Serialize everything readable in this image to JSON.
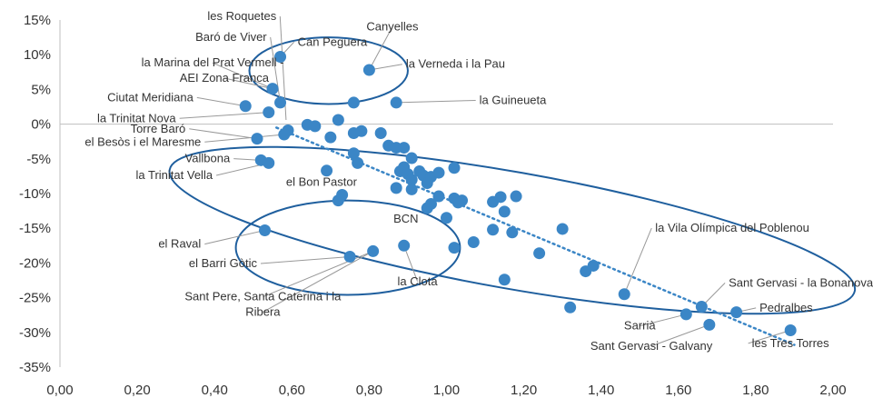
{
  "chart_data": {
    "type": "scatter",
    "title": "",
    "xlabel": "",
    "ylabel": "",
    "xlim": [
      0,
      2.0
    ],
    "ylim": [
      -0.35,
      0.15
    ],
    "grid": false,
    "x_ticks": [
      {
        "value": 0.0,
        "label": "0,00"
      },
      {
        "value": 0.2,
        "label": "0,20"
      },
      {
        "value": 0.4,
        "label": "0,40"
      },
      {
        "value": 0.6,
        "label": "0,60"
      },
      {
        "value": 0.8,
        "label": "0,80"
      },
      {
        "value": 1.0,
        "label": "1,00"
      },
      {
        "value": 1.2,
        "label": "1,20"
      },
      {
        "value": 1.4,
        "label": "1,40"
      },
      {
        "value": 1.6,
        "label": "1,60"
      },
      {
        "value": 1.8,
        "label": "1,80"
      },
      {
        "value": 2.0,
        "label": "2,00"
      }
    ],
    "y_ticks": [
      {
        "value": 0.15,
        "label": "15%"
      },
      {
        "value": 0.1,
        "label": "10%"
      },
      {
        "value": 0.05,
        "label": "5%"
      },
      {
        "value": 0.0,
        "label": "0%"
      },
      {
        "value": -0.05,
        "label": "-5%"
      },
      {
        "value": -0.1,
        "label": "-10%"
      },
      {
        "value": -0.15,
        "label": "-15%"
      },
      {
        "value": -0.2,
        "label": "-20%"
      },
      {
        "value": -0.25,
        "label": "-25%"
      },
      {
        "value": -0.3,
        "label": "-30%"
      },
      {
        "value": -0.35,
        "label": "-35%"
      }
    ],
    "colors": {
      "marker": "#3b86c6",
      "ellipse": "#1f5f9e",
      "trend": "#3b86c6",
      "axis": "#bfbfbf",
      "leader": "#999999"
    },
    "points": [
      {
        "x": 0.57,
        "y": 0.097
      },
      {
        "x": 0.8,
        "y": 0.078
      },
      {
        "x": 0.55,
        "y": 0.051
      },
      {
        "x": 0.57,
        "y": 0.031
      },
      {
        "x": 0.76,
        "y": 0.031
      },
      {
        "x": 0.87,
        "y": 0.031
      },
      {
        "x": 0.48,
        "y": 0.026
      },
      {
        "x": 0.54,
        "y": 0.017
      },
      {
        "x": 0.72,
        "y": 0.006
      },
      {
        "x": 0.64,
        "y": -0.001
      },
      {
        "x": 0.66,
        "y": -0.003
      },
      {
        "x": 0.59,
        "y": -0.009
      },
      {
        "x": 0.58,
        "y": -0.015
      },
      {
        "x": 0.51,
        "y": -0.021
      },
      {
        "x": 0.76,
        "y": -0.013
      },
      {
        "x": 0.78,
        "y": -0.01
      },
      {
        "x": 0.83,
        "y": -0.013
      },
      {
        "x": 0.7,
        "y": -0.019
      },
      {
        "x": 0.85,
        "y": -0.031
      },
      {
        "x": 0.87,
        "y": -0.034
      },
      {
        "x": 0.89,
        "y": -0.034
      },
      {
        "x": 0.76,
        "y": -0.042
      },
      {
        "x": 0.77,
        "y": -0.056
      },
      {
        "x": 0.52,
        "y": -0.052
      },
      {
        "x": 0.54,
        "y": -0.056
      },
      {
        "x": 0.91,
        "y": -0.049
      },
      {
        "x": 0.89,
        "y": -0.062
      },
      {
        "x": 0.93,
        "y": -0.068
      },
      {
        "x": 0.88,
        "y": -0.068
      },
      {
        "x": 0.9,
        "y": -0.072
      },
      {
        "x": 0.94,
        "y": -0.074
      },
      {
        "x": 0.96,
        "y": -0.076
      },
      {
        "x": 0.98,
        "y": -0.07
      },
      {
        "x": 1.02,
        "y": -0.063
      },
      {
        "x": 0.69,
        "y": -0.067
      },
      {
        "x": 0.91,
        "y": -0.08
      },
      {
        "x": 0.95,
        "y": -0.085
      },
      {
        "x": 0.87,
        "y": -0.092
      },
      {
        "x": 0.91,
        "y": -0.094
      },
      {
        "x": 0.98,
        "y": -0.104
      },
      {
        "x": 1.02,
        "y": -0.107
      },
      {
        "x": 1.04,
        "y": -0.11
      },
      {
        "x": 1.03,
        "y": -0.113
      },
      {
        "x": 0.96,
        "y": -0.115
      },
      {
        "x": 0.95,
        "y": -0.121
      },
      {
        "x": 0.73,
        "y": -0.102
      },
      {
        "x": 0.72,
        "y": -0.11
      },
      {
        "x": 1.0,
        "y": -0.135
      },
      {
        "x": 1.12,
        "y": -0.112
      },
      {
        "x": 1.14,
        "y": -0.105
      },
      {
        "x": 1.18,
        "y": -0.104
      },
      {
        "x": 1.15,
        "y": -0.126
      },
      {
        "x": 1.12,
        "y": -0.152
      },
      {
        "x": 1.17,
        "y": -0.156
      },
      {
        "x": 1.3,
        "y": -0.151
      },
      {
        "x": 1.07,
        "y": -0.17
      },
      {
        "x": 1.02,
        "y": -0.178
      },
      {
        "x": 1.24,
        "y": -0.186
      },
      {
        "x": 1.38,
        "y": -0.204
      },
      {
        "x": 1.36,
        "y": -0.212
      },
      {
        "x": 1.15,
        "y": -0.224
      },
      {
        "x": 1.46,
        "y": -0.245
      },
      {
        "x": 1.32,
        "y": -0.264
      },
      {
        "x": 0.53,
        "y": -0.153
      },
      {
        "x": 0.75,
        "y": -0.191
      },
      {
        "x": 0.81,
        "y": -0.183
      },
      {
        "x": 0.89,
        "y": -0.175
      },
      {
        "x": 1.66,
        "y": -0.263
      },
      {
        "x": 1.75,
        "y": -0.271
      },
      {
        "x": 1.62,
        "y": -0.274
      },
      {
        "x": 1.68,
        "y": -0.289
      },
      {
        "x": 1.89,
        "y": -0.297
      }
    ],
    "trendline": {
      "style": "dotted",
      "from": {
        "x": 0.56,
        "y": -0.005
      },
      "to": {
        "x": 1.9,
        "y": -0.318
      }
    },
    "ellipses": [
      {
        "cx": 0.695,
        "cy": 0.077,
        "rx": 0.205,
        "ry": 0.048,
        "angle_deg": 0
      },
      {
        "cx": 1.17,
        "cy": -0.153,
        "rx": 0.9,
        "ry": 0.084,
        "angle_deg": -10
      },
      {
        "cx": 0.745,
        "cy": -0.178,
        "rx": 0.29,
        "ry": 0.068,
        "angle_deg": 0
      }
    ],
    "labels": [
      {
        "text": "les Roquetes",
        "lx": 0.56,
        "ly": 0.15,
        "px": 0.585,
        "py": 0.006,
        "anchor": "end"
      },
      {
        "text": "Canyelles",
        "lx": 0.86,
        "ly": 0.135,
        "px": 0.8,
        "py": 0.078,
        "anchor": "middle"
      },
      {
        "text": "Baró de Viver",
        "lx": 0.535,
        "ly": 0.12,
        "px": 0.57,
        "py": 0.031,
        "anchor": "end"
      },
      {
        "text": "Can Peguera",
        "lx": 0.615,
        "ly": 0.113,
        "px": 0.57,
        "py": 0.097,
        "anchor": "start"
      },
      {
        "text": "la Verneda i la Pau",
        "lx": 0.895,
        "ly": 0.081,
        "px": 0.8,
        "py": 0.078,
        "anchor": "start"
      },
      {
        "text": "la Marina del Prat Vermell -",
        "lx": 0.395,
        "ly": 0.083,
        "px": 0.55,
        "py": 0.051,
        "anchor": "middle"
      },
      {
        "text": "AEI  Zona Franca",
        "lx": 0.425,
        "ly": 0.061,
        "px": 0.55,
        "py": 0.051,
        "anchor": "middle"
      },
      {
        "text": "la Guineueta",
        "lx": 1.085,
        "ly": 0.029,
        "px": 0.87,
        "py": 0.031,
        "anchor": "start"
      },
      {
        "text": "Ciutat Meridiana",
        "lx": 0.345,
        "ly": 0.033,
        "px": 0.48,
        "py": 0.026,
        "anchor": "end"
      },
      {
        "text": "la Trinitat Nova",
        "lx": 0.3,
        "ly": 0.003,
        "px": 0.54,
        "py": 0.017,
        "anchor": "end"
      },
      {
        "text": "Torre Baró",
        "lx": 0.325,
        "ly": -0.012,
        "px": 0.51,
        "py": -0.021,
        "anchor": "end"
      },
      {
        "text": "el Besòs i el Maresme",
        "lx": 0.365,
        "ly": -0.031,
        "px": 0.58,
        "py": -0.015,
        "anchor": "end"
      },
      {
        "text": "Vallbona",
        "lx": 0.44,
        "ly": -0.055,
        "px": 0.52,
        "py": -0.052,
        "anchor": "end"
      },
      {
        "text": "la Trinitat Vella",
        "lx": 0.395,
        "ly": -0.079,
        "px": 0.54,
        "py": -0.056,
        "anchor": "end"
      },
      {
        "text": "el Bon Pastor",
        "lx": 0.585,
        "ly": -0.089,
        "px": null,
        "py": null,
        "anchor": "start"
      },
      {
        "text": "BCN",
        "lx": 0.895,
        "ly": -0.142,
        "px": null,
        "py": null,
        "anchor": "middle"
      },
      {
        "text": "la Vila Olímpica del Poblenou",
        "lx": 1.54,
        "ly": -0.155,
        "px": 1.46,
        "py": -0.245,
        "anchor": "start"
      },
      {
        "text": "el Raval",
        "lx": 0.365,
        "ly": -0.178,
        "px": 0.53,
        "py": -0.153,
        "anchor": "end"
      },
      {
        "text": "el Barri Gòtic",
        "lx": 0.51,
        "ly": -0.206,
        "px": 0.75,
        "py": -0.191,
        "anchor": "end"
      },
      {
        "text": "la Clota",
        "lx": 0.925,
        "ly": -0.232,
        "px": 0.89,
        "py": -0.175,
        "anchor": "middle"
      },
      {
        "text": "Sant Pere, Santa Caterina i la",
        "lx": 0.525,
        "ly": -0.254,
        "px": 0.81,
        "py": -0.183,
        "anchor": "middle"
      },
      {
        "text": "Ribera",
        "lx": 0.525,
        "ly": -0.276,
        "px": 0.81,
        "py": -0.183,
        "anchor": "middle"
      },
      {
        "text": "Sant Gervasi - la Bonanova",
        "lx": 1.73,
        "ly": -0.234,
        "px": 1.66,
        "py": -0.263,
        "anchor": "start"
      },
      {
        "text": "Pedralbes",
        "lx": 1.81,
        "ly": -0.27,
        "px": 1.75,
        "py": -0.271,
        "anchor": "start"
      },
      {
        "text": "Sarrià",
        "lx": 1.5,
        "ly": -0.296,
        "px": 1.62,
        "py": -0.274,
        "anchor": "middle"
      },
      {
        "text": "Sant Gervasi - Galvany",
        "lx": 1.53,
        "ly": -0.325,
        "px": 1.68,
        "py": -0.289,
        "anchor": "middle"
      },
      {
        "text": "les Tres Torres",
        "lx": 1.79,
        "ly": -0.321,
        "px": 1.89,
        "py": -0.297,
        "anchor": "start"
      }
    ]
  }
}
